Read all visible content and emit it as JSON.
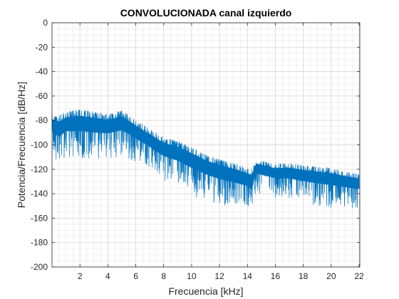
{
  "chart_data": {
    "type": "line",
    "title": "CONVOLUCIONADA canal izquierdo",
    "xlabel": "Frecuencia [kHz]",
    "ylabel": "Potencia/Frecuencia [dB/Hz]",
    "xlim": [
      0,
      22.05
    ],
    "ylim": [
      -200,
      0
    ],
    "xticks": [
      2,
      4,
      6,
      8,
      10,
      12,
      14,
      16,
      18,
      20,
      22
    ],
    "yticks": [
      0,
      -20,
      -40,
      -60,
      -80,
      -100,
      -120,
      -140,
      -160,
      -180,
      -200
    ],
    "grid": true,
    "minor_grid": true,
    "color": "#0072BD",
    "series": [
      {
        "x": [
          0,
          0.5,
          1,
          1.5,
          2,
          3,
          4,
          5,
          5.5,
          6,
          7,
          8,
          9,
          10,
          11,
          12,
          13,
          14,
          14.3,
          14.6,
          15,
          16,
          17,
          18,
          19,
          20,
          21,
          22
        ],
        "upper": [
          -75,
          -76,
          -73,
          -72,
          -71,
          -73,
          -75,
          -72,
          -76,
          -80,
          -87,
          -94,
          -97,
          -102,
          -108,
          -112,
          -115,
          -119,
          -120,
          -112,
          -113,
          -116,
          -115,
          -117,
          -118,
          -119,
          -122,
          -124
        ],
        "lower": [
          -108,
          -118,
          -110,
          -112,
          -113,
          -113,
          -112,
          -110,
          -112,
          -115,
          -122,
          -130,
          -135,
          -142,
          -146,
          -150,
          -152,
          -154,
          -160,
          -140,
          -140,
          -143,
          -145,
          -147,
          -150,
          -152,
          -152,
          -153
        ]
      }
    ]
  }
}
